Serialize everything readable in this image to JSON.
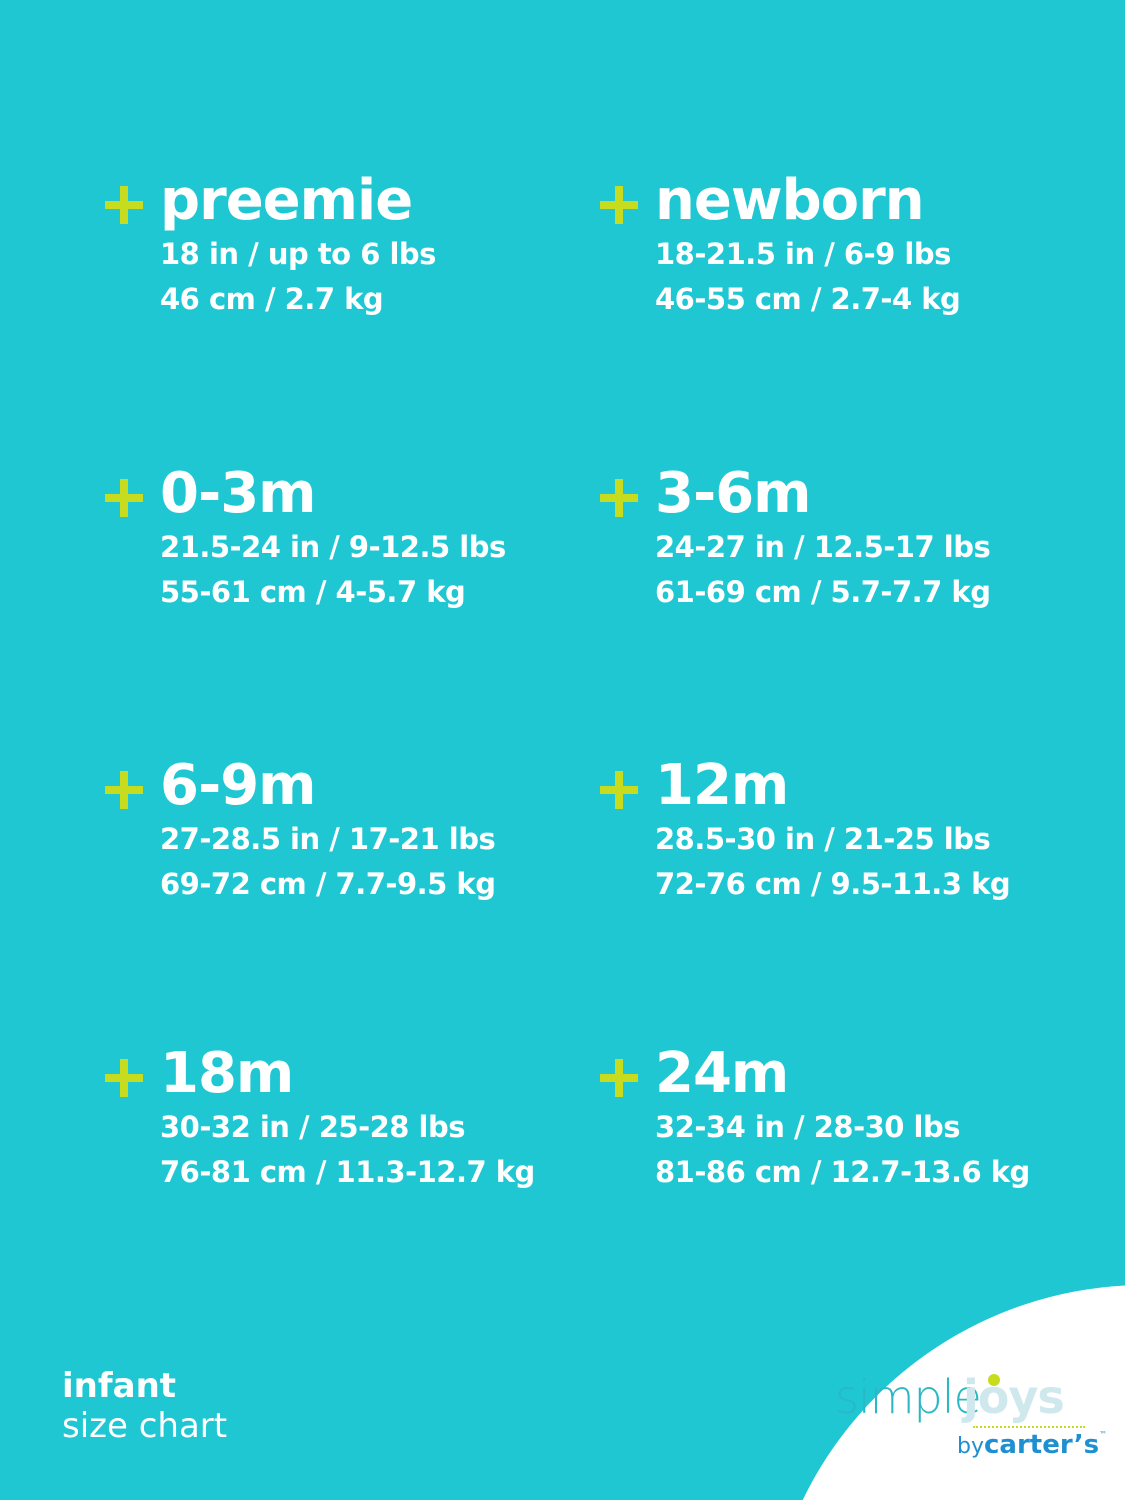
{
  "sizes": [
    {
      "name": "preemie",
      "length": "18 in / up to 6 lbs",
      "metric": "46 cm / 2.7 kg"
    },
    {
      "name": "newborn",
      "length": "18-21.5 in / 6-9 lbs",
      "metric": "46-55 cm / 2.7-4 kg"
    },
    {
      "name": "0-3m",
      "length": "21.5-24 in / 9-12.5 lbs",
      "metric": "55-61 cm / 4-5.7 kg"
    },
    {
      "name": "3-6m",
      "length": "24-27 in / 12.5-17 lbs",
      "metric": "61-69 cm / 5.7-7.7 kg"
    },
    {
      "name": "6-9m",
      "length": "27-28.5 in / 17-21 lbs",
      "metric": "69-72 cm / 7.7-9.5 kg"
    },
    {
      "name": "12m",
      "length": "28.5-30 in / 21-25 lbs",
      "metric": "72-76 cm / 9.5-11.3 kg"
    },
    {
      "name": "18m",
      "length": "30-32 in / 25-28 lbs",
      "metric": "76-81 cm / 11.3-12.7 kg"
    },
    {
      "name": "24m",
      "length": "32-34 in / 28-30 lbs",
      "metric": "81-86 cm / 12.7-13.6 kg"
    }
  ],
  "footer": {
    "line1": "infant",
    "line2": "size chart"
  },
  "logo": {
    "simple": "simple",
    "joys": "joys",
    "by": "by",
    "brand": "carter’s",
    "tm": "™"
  },
  "colors": {
    "background": "#1fc7d3",
    "accent": "#c8dc1f",
    "text": "#ffffff",
    "logo_teal": "#2bb8c4",
    "logo_blue": "#1e8fd0"
  },
  "icons": {
    "bullet": "plus-icon"
  }
}
